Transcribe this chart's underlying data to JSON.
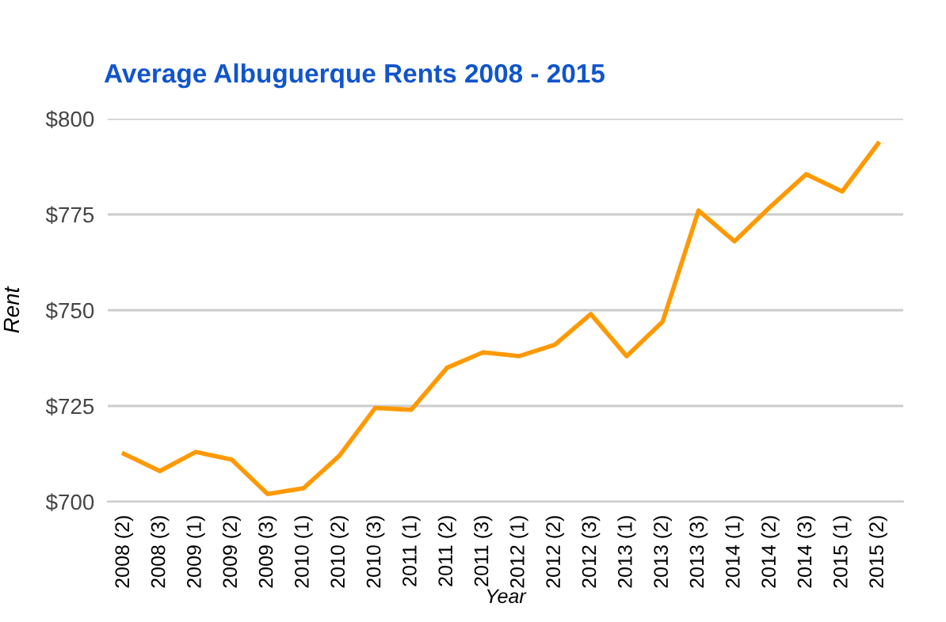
{
  "chart_data": {
    "type": "line",
    "title": "Average Albuguerque Rents 2008 - 2015",
    "xlabel": "Year",
    "ylabel": "Rent",
    "categories": [
      "2008 (2)",
      "2008 (3)",
      "2009 (1)",
      "2009 (2)",
      "2009 (3)",
      "2010 (1)",
      "2010 (2)",
      "2010 (3)",
      "2011 (1)",
      "2011 (2)",
      "2011 (3)",
      "2012 (1)",
      "2012 (2)",
      "2012 (3)",
      "2013 (1)",
      "2013 (2)",
      "2013 (3)",
      "2014 (1)",
      "2014 (2)",
      "2014 (3)",
      "2015 (1)",
      "2015 (2)"
    ],
    "series": [
      {
        "color": "#ff9900",
        "values": [
          712.5,
          708,
          713,
          711,
          702,
          703.5,
          712,
          724.5,
          724,
          735,
          739,
          738,
          741,
          749,
          738,
          747,
          776,
          768,
          777,
          785.5,
          781,
          793.5
        ]
      }
    ],
    "ylim": [
      700,
      800
    ],
    "yticks": [
      {
        "value": 700,
        "label": "$700"
      },
      {
        "value": 725,
        "label": "$725"
      },
      {
        "value": 750,
        "label": "$750"
      },
      {
        "value": 775,
        "label": "$775"
      },
      {
        "value": 800,
        "label": "$800"
      }
    ],
    "grid": "y",
    "legend": false,
    "marker": "none",
    "line_style": "solid"
  }
}
